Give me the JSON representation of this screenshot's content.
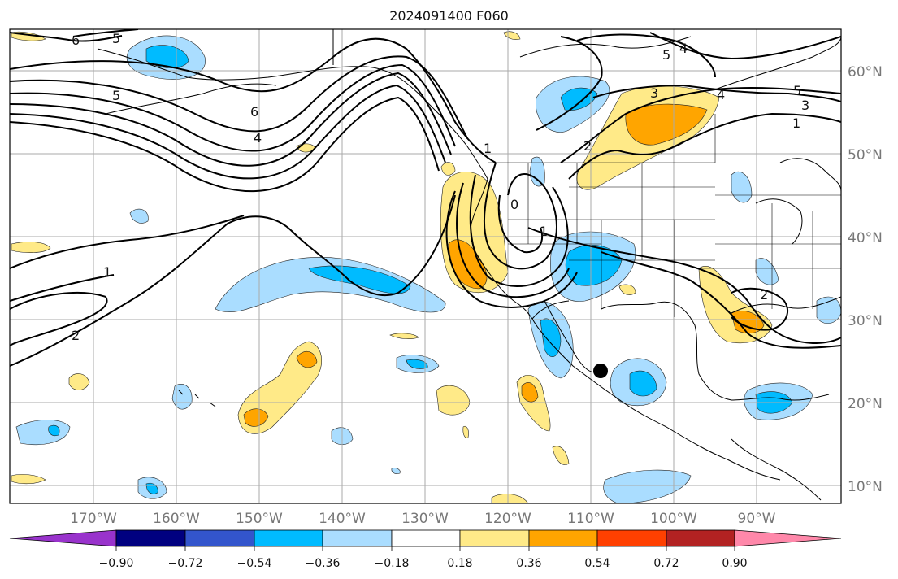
{
  "title": "2024091400 F060",
  "map": {
    "lat_labels": [
      "60°N",
      "50°N",
      "40°N",
      "30°N",
      "20°N",
      "10°N"
    ],
    "lon_labels": [
      "170°W",
      "160°W",
      "150°W",
      "140°W",
      "130°W",
      "120°W",
      "110°W",
      "100°W",
      "90°W"
    ],
    "contour_labels": [
      "5",
      "6",
      "5",
      "4",
      "5",
      "6",
      "4",
      "1",
      "0",
      "1",
      "2",
      "3",
      "4",
      "5",
      "3",
      "1",
      "2",
      "1",
      "2"
    ]
  },
  "colorbar": {
    "tick_labels": [
      "−0.90",
      "−0.72",
      "−0.54",
      "−0.36",
      "−0.18",
      "0.18",
      "0.36",
      "0.54",
      "0.72",
      "0.90"
    ],
    "colors": [
      "#9933cc",
      "#000080",
      "#3355cc",
      "#00bbff",
      "#aaddff",
      "#ffffff",
      "#ffea88",
      "#ffa500",
      "#ff4000",
      "#b22222",
      "#ff88aa"
    ]
  },
  "colors": {
    "light_blue": "#aaddff",
    "blue": "#00bbff",
    "light_yellow": "#ffea88",
    "orange": "#ffa500"
  }
}
